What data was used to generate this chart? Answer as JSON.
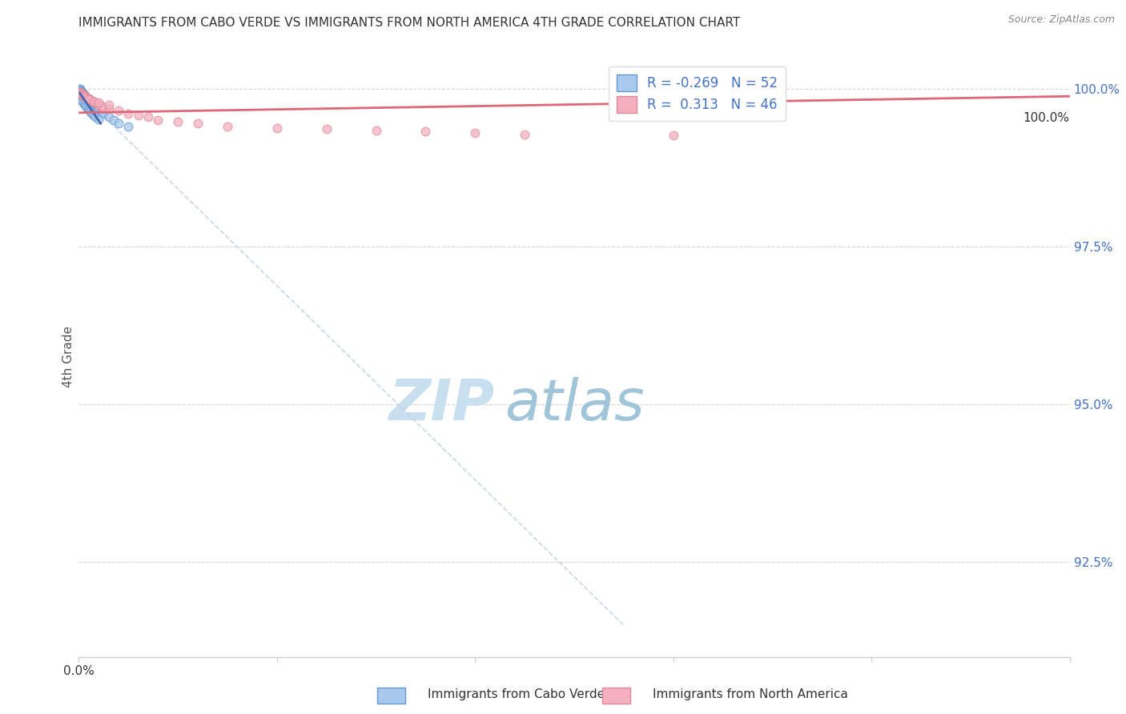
{
  "title": "IMMIGRANTS FROM CABO VERDE VS IMMIGRANTS FROM NORTH AMERICA 4TH GRADE CORRELATION CHART",
  "source": "Source: ZipAtlas.com",
  "ylabel": "4th Grade",
  "ytick_labels": [
    "92.5%",
    "95.0%",
    "97.5%",
    "100.0%"
  ],
  "ytick_values": [
    0.925,
    0.95,
    0.975,
    1.0
  ],
  "xmin": 0.0,
  "xmax": 1.0,
  "ymin": 0.91,
  "ymax": 1.005,
  "r1": -0.269,
  "n1": 52,
  "r2": 0.313,
  "n2": 46,
  "color_blue_fill": "#A8C8F0",
  "color_blue_edge": "#6699CC",
  "color_pink_fill": "#F4B0C0",
  "color_pink_edge": "#DD8899",
  "color_blue_line": "#4466AA",
  "color_pink_line": "#DD6677",
  "color_diag": "#BBCCDD",
  "legend_label1": "Immigrants from Cabo Verde",
  "legend_label2": "Immigrants from North America",
  "cabo_verde_x": [
    0.001,
    0.001,
    0.002,
    0.002,
    0.003,
    0.003,
    0.003,
    0.004,
    0.004,
    0.004,
    0.005,
    0.005,
    0.005,
    0.006,
    0.006,
    0.006,
    0.007,
    0.007,
    0.008,
    0.009,
    0.01,
    0.01,
    0.011,
    0.012,
    0.013,
    0.014,
    0.015,
    0.016,
    0.018,
    0.02,
    0.022,
    0.025,
    0.03,
    0.035,
    0.04,
    0.05,
    0.001,
    0.002,
    0.003,
    0.004,
    0.005,
    0.006,
    0.007,
    0.008,
    0.009,
    0.01,
    0.011,
    0.012,
    0.013,
    0.015,
    0.017,
    0.02
  ],
  "cabo_verde_y": [
    1.0,
    0.9998,
    0.9997,
    0.9996,
    0.9995,
    0.9994,
    0.9993,
    0.9993,
    0.9992,
    0.9991,
    0.9991,
    0.999,
    0.9989,
    0.9989,
    0.9988,
    0.9987,
    0.9987,
    0.9986,
    0.9985,
    0.9984,
    0.9983,
    0.9982,
    0.998,
    0.9978,
    0.9976,
    0.9974,
    0.9972,
    0.997,
    0.9968,
    0.9965,
    0.9962,
    0.996,
    0.9955,
    0.995,
    0.9945,
    0.994,
    0.9985,
    0.9983,
    0.9981,
    0.9979,
    0.9977,
    0.9975,
    0.9973,
    0.9971,
    0.9969,
    0.9967,
    0.9965,
    0.9963,
    0.9961,
    0.9958,
    0.9955,
    0.9952
  ],
  "north_america_x": [
    0.001,
    0.002,
    0.003,
    0.004,
    0.005,
    0.005,
    0.006,
    0.007,
    0.008,
    0.009,
    0.01,
    0.011,
    0.012,
    0.013,
    0.015,
    0.016,
    0.018,
    0.02,
    0.022,
    0.025,
    0.03,
    0.04,
    0.05,
    0.06,
    0.07,
    0.08,
    0.1,
    0.12,
    0.15,
    0.2,
    0.25,
    0.3,
    0.35,
    0.4,
    0.45,
    0.6,
    0.002,
    0.003,
    0.004,
    0.005,
    0.006,
    0.008,
    0.01,
    0.015,
    0.02,
    0.03
  ],
  "north_america_y": [
    0.9995,
    0.9993,
    0.9992,
    0.9991,
    0.999,
    0.9989,
    0.9988,
    0.9987,
    0.9986,
    0.9985,
    0.9984,
    0.9983,
    0.9982,
    0.9981,
    0.998,
    0.9978,
    0.9977,
    0.9975,
    0.9973,
    0.997,
    0.9968,
    0.9965,
    0.996,
    0.9958,
    0.9955,
    0.995,
    0.9948,
    0.9945,
    0.994,
    0.9938,
    0.9936,
    0.9934,
    0.9932,
    0.993,
    0.9928,
    0.9926,
    0.9992,
    0.9991,
    0.999,
    0.9988,
    0.9987,
    0.9985,
    0.9983,
    0.998,
    0.9978,
    0.9975
  ],
  "watermark_zip_color": "#C8DFF0",
  "watermark_atlas_color": "#A0C4D8"
}
